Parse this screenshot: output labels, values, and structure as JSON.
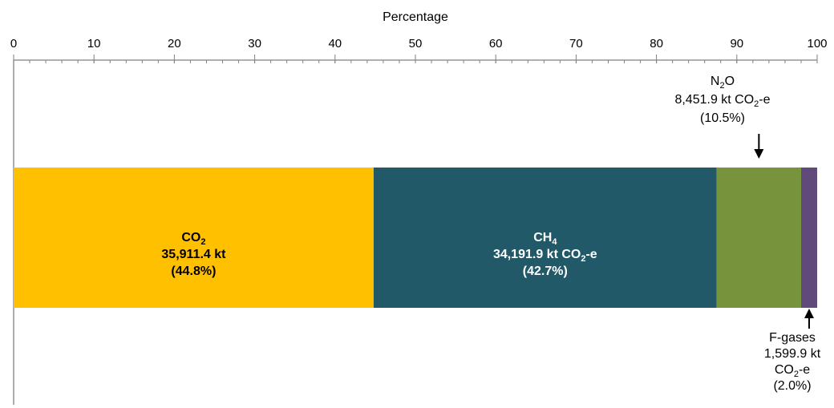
{
  "chart_data": {
    "type": "bar",
    "orientation": "horizontal-stacked",
    "xlabel": "Percentage",
    "xlim": [
      0,
      100
    ],
    "x_ticks": [
      0,
      10,
      20,
      30,
      40,
      50,
      60,
      70,
      80,
      90,
      100
    ],
    "x_tick_labels": [
      "0",
      "10",
      "20",
      "30",
      "40",
      "50",
      "60",
      "70",
      "80",
      "90",
      "100"
    ],
    "x_axis_position": "top",
    "grid": false,
    "segments": [
      {
        "name": "CO2",
        "value": 44.8,
        "color": "#FFC000",
        "label_position": "inside",
        "label_lines": [
          {
            "parts": [
              {
                "t": "CO"
              },
              {
                "t": "2",
                "sub": true
              }
            ]
          },
          {
            "parts": [
              {
                "t": "35,911.4 kt"
              }
            ]
          },
          {
            "parts": [
              {
                "t": "(44.8%)"
              }
            ]
          }
        ]
      },
      {
        "name": "CH4",
        "value": 42.7,
        "color": "#215968",
        "label_position": "inside",
        "label_lines": [
          {
            "parts": [
              {
                "t": "CH"
              },
              {
                "t": "4",
                "sub": true
              }
            ]
          },
          {
            "parts": [
              {
                "t": "34,191.9 kt CO"
              },
              {
                "t": "2",
                "sub": true
              },
              {
                "t": "-e"
              }
            ]
          },
          {
            "parts": [
              {
                "t": "(42.7%)"
              }
            ]
          }
        ]
      },
      {
        "name": "N2O",
        "value": 10.5,
        "color": "#77933C",
        "label_position": "above",
        "label_lines": [
          {
            "parts": [
              {
                "t": "N"
              },
              {
                "t": "2",
                "sub": true
              },
              {
                "t": "O"
              }
            ]
          },
          {
            "parts": [
              {
                "t": "8,451.9 kt CO"
              },
              {
                "t": "2",
                "sub": true
              },
              {
                "t": "-e"
              }
            ]
          },
          {
            "parts": [
              {
                "t": "(10.5%)"
              }
            ]
          }
        ]
      },
      {
        "name": "F-gases",
        "value": 2.0,
        "color": "#604A7B",
        "label_position": "below",
        "label_lines": [
          {
            "parts": [
              {
                "t": "F-gases"
              }
            ]
          },
          {
            "parts": [
              {
                "t": "1,599.9 kt"
              }
            ]
          },
          {
            "parts": [
              {
                "t": "CO"
              },
              {
                "t": "2",
                "sub": true
              },
              {
                "t": "-e"
              }
            ]
          },
          {
            "parts": [
              {
                "t": "(2.0%)"
              }
            ]
          }
        ]
      }
    ]
  }
}
